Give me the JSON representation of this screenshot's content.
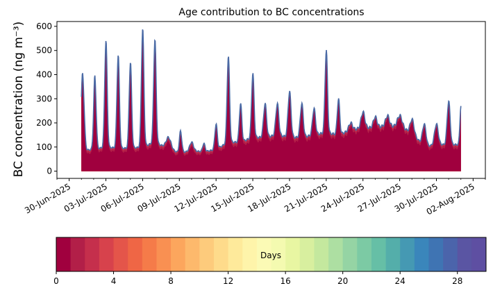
{
  "chart_data": {
    "type": "area",
    "title": "Age contribution to BC concentrations",
    "ylabel": "BC concentration (ng m⁻³)",
    "xlabel": "",
    "x_range_days": [
      -1,
      34
    ],
    "ylim": [
      -30,
      620
    ],
    "y_ticks": [
      0,
      100,
      200,
      300,
      400,
      500,
      600
    ],
    "x_ticks": [
      {
        "day": 0,
        "label": "30-Jun-2025"
      },
      {
        "day": 3,
        "label": "03-Jul-2025"
      },
      {
        "day": 6,
        "label": "06-Jul-2025"
      },
      {
        "day": 9,
        "label": "09-Jul-2025"
      },
      {
        "day": 12,
        "label": "12-Jul-2025"
      },
      {
        "day": 15,
        "label": "15-Jul-2025"
      },
      {
        "day": 18,
        "label": "18-Jul-2025"
      },
      {
        "day": 21,
        "label": "21-Jul-2025"
      },
      {
        "day": 24,
        "label": "24-Jul-2025"
      },
      {
        "day": 27,
        "label": "27-Jul-2025"
      },
      {
        "day": 30,
        "label": "30-Jul-2025"
      },
      {
        "day": 33,
        "label": "02-Aug-2025"
      }
    ],
    "start_day": 1.0,
    "end_day": 32.0,
    "baseline": [
      [
        1.0,
        85
      ],
      [
        2.0,
        90
      ],
      [
        3.0,
        100
      ],
      [
        4.0,
        95
      ],
      [
        5.0,
        95
      ],
      [
        6.0,
        100
      ],
      [
        7.0,
        120
      ],
      [
        8.0,
        95
      ],
      [
        9.0,
        75
      ],
      [
        10.0,
        85
      ],
      [
        11.0,
        80
      ],
      [
        12.0,
        90
      ],
      [
        13.0,
        120
      ],
      [
        14.0,
        120
      ],
      [
        15.0,
        140
      ],
      [
        16.0,
        140
      ],
      [
        17.0,
        150
      ],
      [
        18.0,
        140
      ],
      [
        19.0,
        140
      ],
      [
        20.0,
        150
      ],
      [
        21.0,
        160
      ],
      [
        22.0,
        150
      ],
      [
        23.0,
        170
      ],
      [
        24.0,
        180
      ],
      [
        25.0,
        180
      ],
      [
        26.0,
        190
      ],
      [
        27.0,
        180
      ],
      [
        28.0,
        160
      ],
      [
        29.0,
        100
      ],
      [
        30.0,
        110
      ],
      [
        31.0,
        110
      ],
      [
        32.0,
        110
      ]
    ],
    "peaks": [
      [
        1.1,
        400,
        0.12
      ],
      [
        2.1,
        390,
        0.1
      ],
      [
        3.0,
        540,
        0.1
      ],
      [
        4.0,
        480,
        0.1
      ],
      [
        5.0,
        450,
        0.1
      ],
      [
        6.0,
        590,
        0.1
      ],
      [
        7.0,
        545,
        0.1
      ],
      [
        8.1,
        140,
        0.2
      ],
      [
        9.1,
        165,
        0.1
      ],
      [
        10.0,
        120,
        0.15
      ],
      [
        11.0,
        115,
        0.1
      ],
      [
        12.0,
        195,
        0.1
      ],
      [
        13.0,
        475,
        0.1
      ],
      [
        14.0,
        280,
        0.1
      ],
      [
        15.0,
        405,
        0.1
      ],
      [
        16.0,
        280,
        0.12
      ],
      [
        17.0,
        280,
        0.12
      ],
      [
        18.0,
        330,
        0.12
      ],
      [
        19.0,
        280,
        0.12
      ],
      [
        20.0,
        260,
        0.12
      ],
      [
        21.0,
        500,
        0.1
      ],
      [
        22.0,
        300,
        0.1
      ],
      [
        23.0,
        200,
        0.15
      ],
      [
        24.0,
        245,
        0.15
      ],
      [
        25.0,
        225,
        0.15
      ],
      [
        26.0,
        230,
        0.15
      ],
      [
        27.0,
        230,
        0.2
      ],
      [
        28.0,
        215,
        0.15
      ],
      [
        29.0,
        195,
        0.15
      ],
      [
        30.0,
        195,
        0.15
      ],
      [
        31.0,
        290,
        0.12
      ],
      [
        32.0,
        270,
        0.08
      ]
    ],
    "total_line_color": "#4a6aa5",
    "colorbar": {
      "label": "Days",
      "min": 0,
      "max": 30,
      "n_bins": 30,
      "ticks": [
        0,
        4,
        8,
        12,
        16,
        20,
        24,
        28
      ],
      "colors": [
        "#a0003e",
        "#b21f48",
        "#c52f4c",
        "#d7424c",
        "#e4554a",
        "#ef6645",
        "#f57b49",
        "#f99052",
        "#fca65d",
        "#fdb96c",
        "#fdcb7c",
        "#fedb8b",
        "#feea9b",
        "#fef4aa",
        "#fbfab5",
        "#f4fab0",
        "#e8f6a2",
        "#d8ef9f",
        "#c4e89e",
        "#add f a2",
        "#95d4a4",
        "#7ccaa4",
        "#66bfa6",
        "#54aeaa",
        "#4599b3",
        "#3a86bb",
        "#3f74b3",
        "#4b64ab",
        "#5a55a3",
        "#5e4fa2"
      ]
    }
  }
}
